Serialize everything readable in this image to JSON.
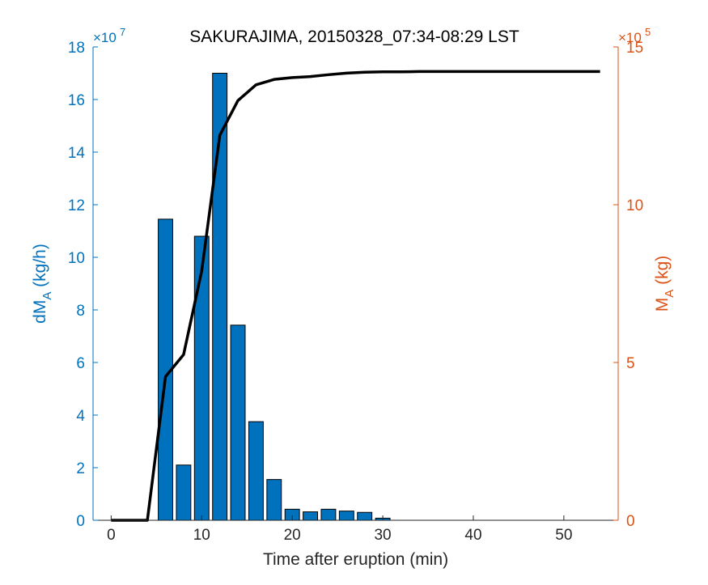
{
  "chart_data": {
    "type": "bar",
    "title": "SAKURAJIMA, 20150328_07:34-08:29 LST",
    "xlabel": "Time after eruption (min)",
    "ylabel_left": "dM",
    "ylabel_left_sub": "A",
    "ylabel_left_unit": " (kg/h)",
    "ylabel_right": "M",
    "ylabel_right_sub": "A",
    "ylabel_right_unit": " (kg)",
    "left_exponent_base": "×10",
    "left_exponent": "7",
    "right_exponent_base": "×10",
    "right_exponent": "5",
    "xlim": [
      -2,
      56
    ],
    "ylim_left": [
      0,
      18
    ],
    "ylim_right": [
      0,
      15
    ],
    "xticks": [
      0,
      10,
      20,
      30,
      40,
      50
    ],
    "yticks_left": [
      0,
      2,
      4,
      6,
      8,
      10,
      12,
      14,
      16,
      18
    ],
    "yticks_right": [
      0,
      5,
      10,
      15
    ],
    "colors": {
      "left_axis": "#0072BD",
      "right_axis": "#D95319",
      "bars": "#0072BD",
      "line": "#000000",
      "axis_text": "#262626"
    },
    "series": [
      {
        "name": "dM_A",
        "kind": "bar",
        "axis": "left",
        "x": [
          0,
          2,
          4,
          6,
          8,
          10,
          12,
          14,
          16,
          18,
          20,
          22,
          24,
          26,
          28,
          30
        ],
        "values": [
          0,
          0,
          0,
          11.45,
          2.1,
          10.8,
          17.0,
          7.42,
          3.75,
          1.55,
          0.42,
          0.32,
          0.42,
          0.35,
          0.3,
          0.08
        ]
      },
      {
        "name": "M_A",
        "kind": "line",
        "axis": "right",
        "x": [
          0,
          2,
          4,
          6,
          8,
          10,
          12,
          14,
          16,
          18,
          20,
          22,
          24,
          26,
          28,
          30,
          32,
          34,
          36,
          38,
          40,
          42,
          44,
          46,
          48,
          50,
          52,
          54
        ],
        "values": [
          0,
          0,
          0,
          4.55,
          5.25,
          7.9,
          12.2,
          13.3,
          13.8,
          13.97,
          14.03,
          14.06,
          14.12,
          14.17,
          14.2,
          14.21,
          14.21,
          14.22,
          14.22,
          14.22,
          14.22,
          14.22,
          14.22,
          14.22,
          14.22,
          14.22,
          14.22,
          14.22
        ]
      }
    ]
  }
}
